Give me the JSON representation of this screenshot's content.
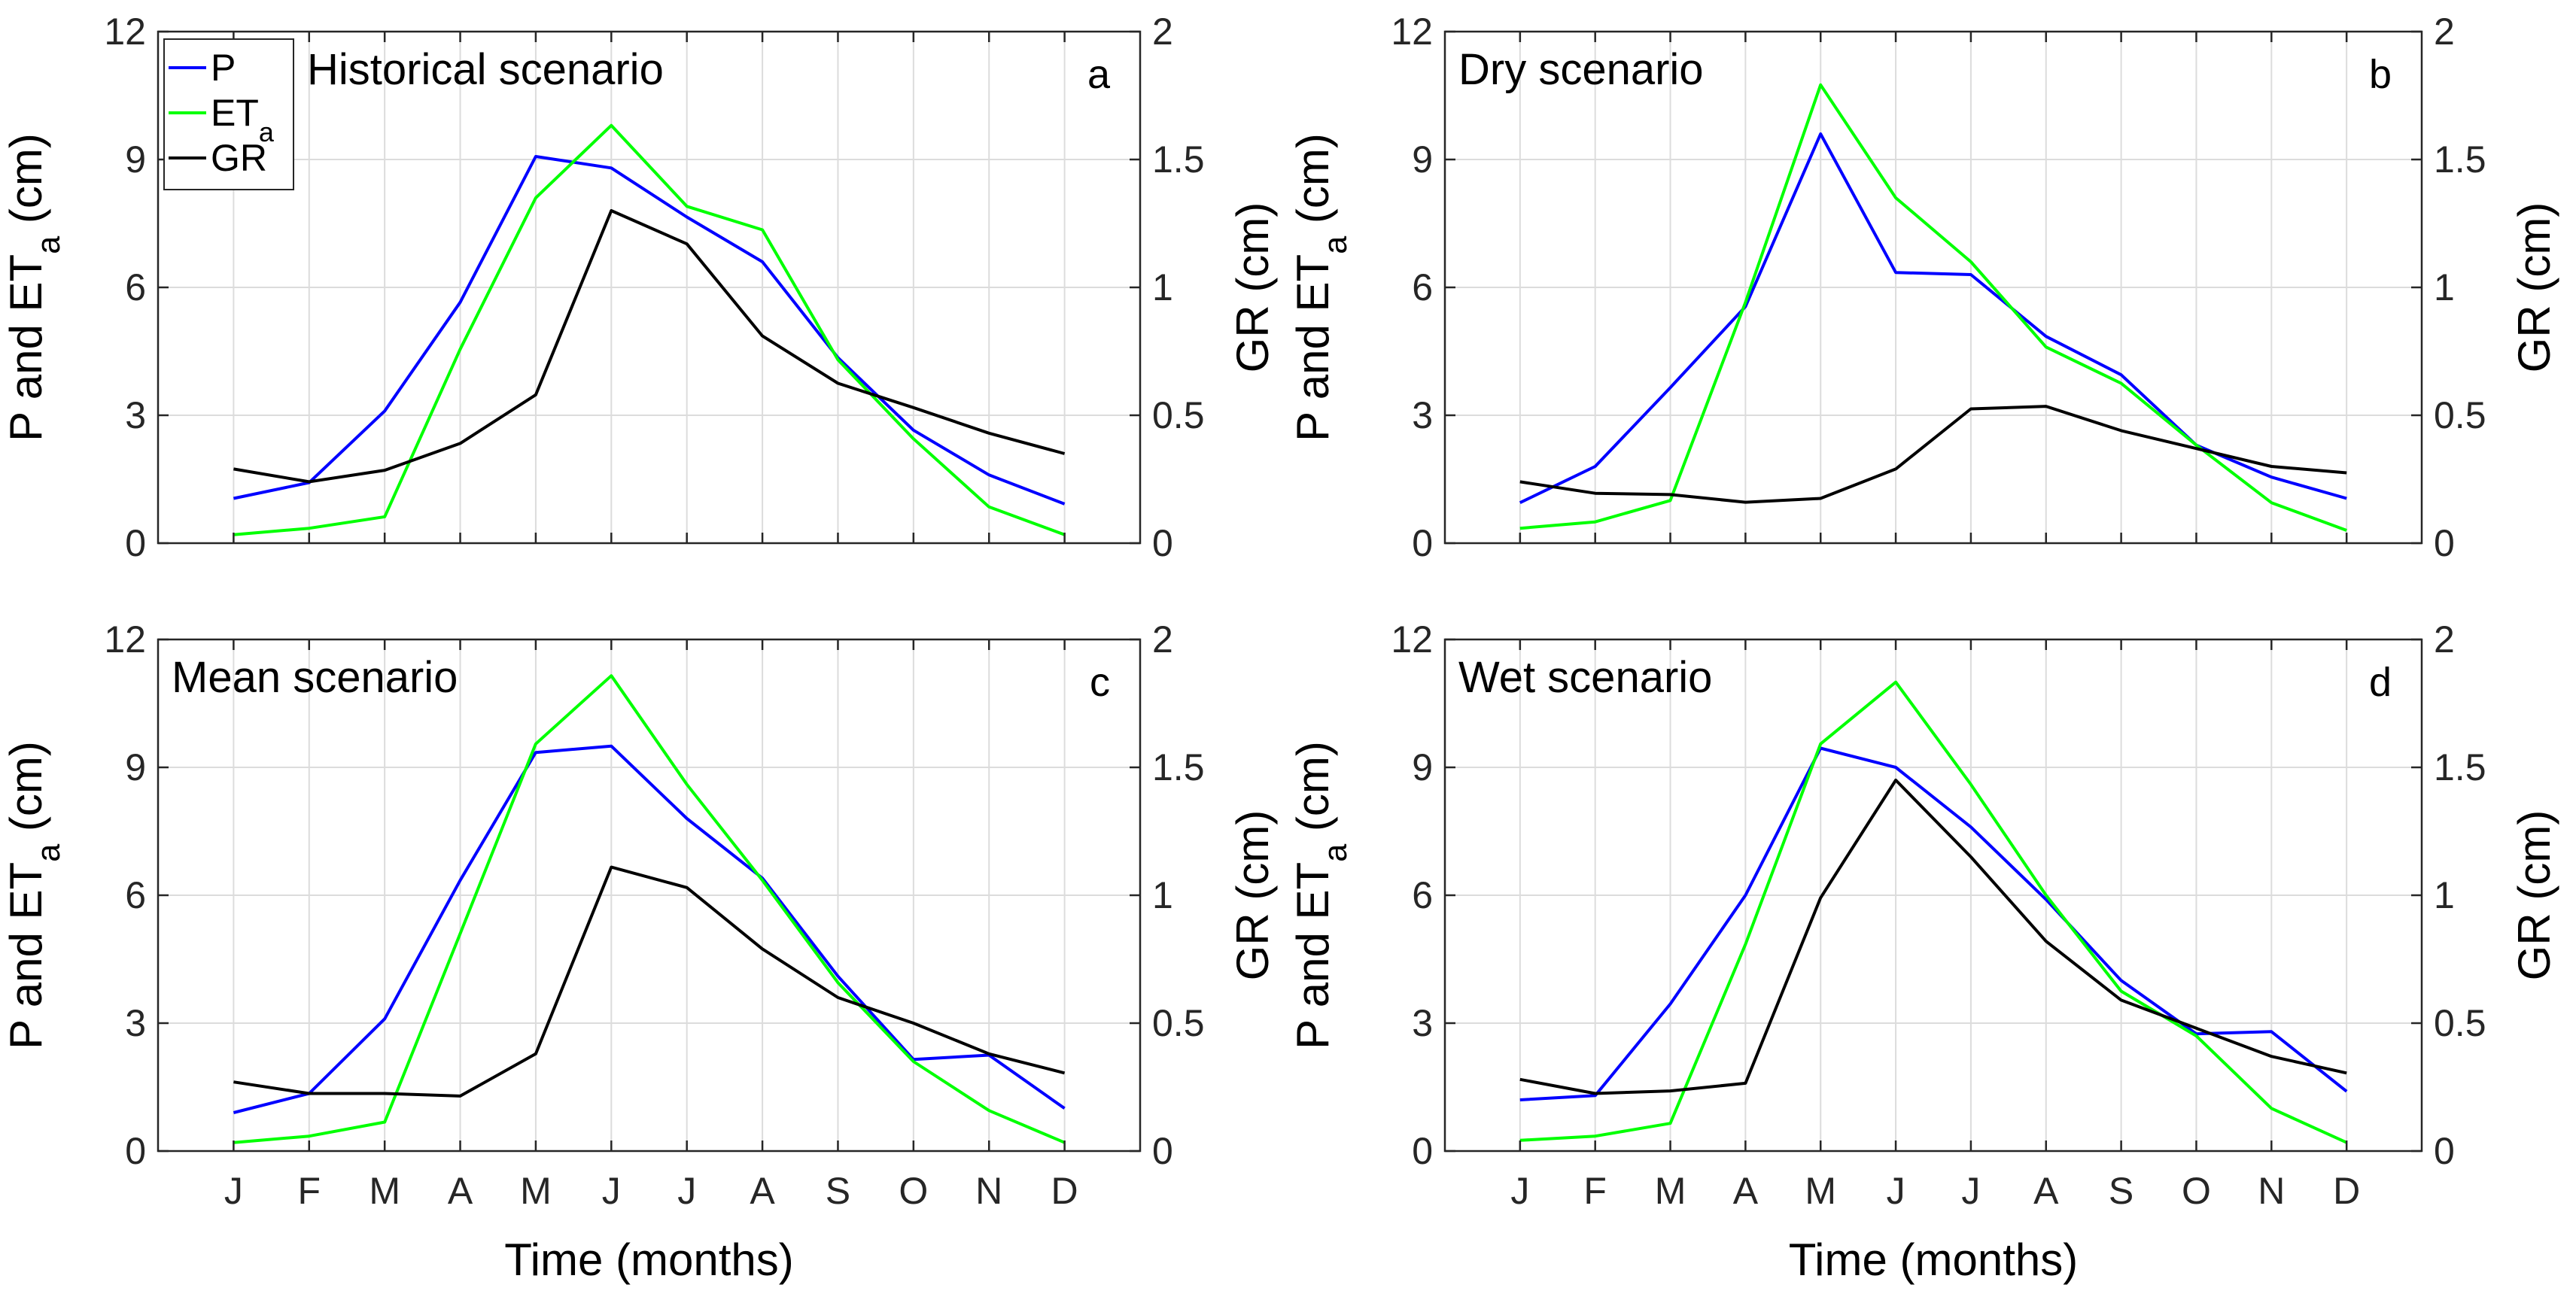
{
  "colors": {
    "P": "#0000ff",
    "ETa": "#00ff00",
    "GR": "#000000"
  },
  "chart_data": [
    {
      "type": "line",
      "title": "Historical scenario",
      "panel_label": "a",
      "categories": [
        "J",
        "F",
        "M",
        "A",
        "M",
        "J",
        "J",
        "A",
        "S",
        "O",
        "N",
        "D"
      ],
      "ylim_left": [
        0,
        12
      ],
      "yticks_left": [
        "0",
        "3",
        "6",
        "9",
        "12"
      ],
      "ylim_right": [
        0,
        2
      ],
      "yticks_right": [
        "0",
        "0.5",
        "1",
        "1.5",
        "2"
      ],
      "ylabel_left_main": "P and ET",
      "ylabel_left_sub": "a",
      "ylabel_left_tail": " (cm)",
      "ylabel_right": "GR (cm)",
      "xlabel": "",
      "legend": true,
      "series": [
        {
          "name": "P",
          "axis": "left",
          "values": [
            1.05,
            1.42,
            3.1,
            5.65,
            9.07,
            8.8,
            7.65,
            6.6,
            4.35,
            2.65,
            1.6,
            0.92
          ]
        },
        {
          "name": "ET",
          "name_sub": "a",
          "axis": "left",
          "values": [
            0.2,
            0.35,
            0.62,
            4.55,
            8.1,
            9.8,
            7.9,
            7.35,
            4.3,
            2.45,
            0.85,
            0.2
          ]
        },
        {
          "name": "GR",
          "axis": "right",
          "values": [
            0.29,
            0.24,
            0.285,
            0.39,
            0.58,
            1.3,
            1.17,
            0.81,
            0.625,
            0.53,
            0.43,
            0.35
          ]
        }
      ]
    },
    {
      "type": "line",
      "title": "Dry scenario",
      "panel_label": "b",
      "categories": [
        "J",
        "F",
        "M",
        "A",
        "M",
        "J",
        "J",
        "A",
        "S",
        "O",
        "N",
        "D"
      ],
      "ylim_left": [
        0,
        12
      ],
      "yticks_left": [
        "0",
        "3",
        "6",
        "9",
        "12"
      ],
      "ylim_right": [
        0,
        2
      ],
      "yticks_right": [
        "0",
        "0.5",
        "1",
        "1.5",
        "2"
      ],
      "ylabel_left_main": "P and ET",
      "ylabel_left_sub": "a",
      "ylabel_left_tail": " (cm)",
      "ylabel_right": "GR (cm)",
      "xlabel": "",
      "legend": false,
      "series": [
        {
          "name": "P",
          "axis": "left",
          "values": [
            0.95,
            1.8,
            3.65,
            5.55,
            9.6,
            6.35,
            6.3,
            4.85,
            3.95,
            2.3,
            1.55,
            1.05
          ]
        },
        {
          "name": "ET",
          "name_sub": "a",
          "axis": "left",
          "values": [
            0.35,
            0.5,
            1.0,
            5.65,
            10.75,
            8.1,
            6.6,
            4.6,
            3.75,
            2.3,
            0.95,
            0.3
          ]
        },
        {
          "name": "GR",
          "axis": "right",
          "values": [
            0.24,
            0.195,
            0.19,
            0.16,
            0.175,
            0.29,
            0.525,
            0.535,
            0.44,
            0.37,
            0.3,
            0.275
          ]
        }
      ]
    },
    {
      "type": "line",
      "title": "Mean scenario",
      "panel_label": "c",
      "categories": [
        "J",
        "F",
        "M",
        "A",
        "M",
        "J",
        "J",
        "A",
        "S",
        "O",
        "N",
        "D"
      ],
      "ylim_left": [
        0,
        12
      ],
      "yticks_left": [
        "0",
        "3",
        "6",
        "9",
        "12"
      ],
      "ylim_right": [
        0,
        2
      ],
      "yticks_right": [
        "0",
        "0.5",
        "1",
        "1.5",
        "2"
      ],
      "ylabel_left_main": "P and ET",
      "ylabel_left_sub": "a",
      "ylabel_left_tail": " (cm)",
      "ylabel_right": "GR (cm)",
      "xlabel": "Time (months)",
      "legend": false,
      "series": [
        {
          "name": "P",
          "axis": "left",
          "values": [
            0.9,
            1.35,
            3.1,
            6.35,
            9.35,
            9.5,
            7.8,
            6.4,
            4.1,
            2.15,
            2.25,
            1.0
          ]
        },
        {
          "name": "ET",
          "name_sub": "a",
          "axis": "left",
          "values": [
            0.2,
            0.35,
            0.68,
            5.1,
            9.55,
            11.15,
            8.6,
            6.35,
            3.95,
            2.1,
            0.95,
            0.2
          ]
        },
        {
          "name": "GR",
          "axis": "right",
          "values": [
            0.27,
            0.225,
            0.225,
            0.215,
            0.38,
            1.11,
            1.03,
            0.79,
            0.6,
            0.5,
            0.38,
            0.305
          ]
        }
      ]
    },
    {
      "type": "line",
      "title": "Wet scenario",
      "panel_label": "d",
      "categories": [
        "J",
        "F",
        "M",
        "A",
        "M",
        "J",
        "J",
        "A",
        "S",
        "O",
        "N",
        "D"
      ],
      "ylim_left": [
        0,
        12
      ],
      "yticks_left": [
        "0",
        "3",
        "6",
        "9",
        "12"
      ],
      "ylim_right": [
        0,
        2
      ],
      "yticks_right": [
        "0",
        "0.5",
        "1",
        "1.5",
        "2"
      ],
      "ylabel_left_main": "P and ET",
      "ylabel_left_sub": "a",
      "ylabel_left_tail": " (cm)",
      "ylabel_right": "GR (cm)",
      "xlabel": "Time (months)",
      "legend": false,
      "series": [
        {
          "name": "P",
          "axis": "left",
          "values": [
            1.2,
            1.3,
            3.45,
            6.0,
            9.45,
            9.0,
            7.6,
            5.9,
            4.0,
            2.75,
            2.8,
            1.4
          ]
        },
        {
          "name": "ET",
          "name_sub": "a",
          "axis": "left",
          "values": [
            0.25,
            0.35,
            0.65,
            4.85,
            9.55,
            11.0,
            8.6,
            6.0,
            3.75,
            2.7,
            1.0,
            0.2
          ]
        },
        {
          "name": "GR",
          "axis": "right",
          "values": [
            0.28,
            0.225,
            0.235,
            0.265,
            0.99,
            1.45,
            1.15,
            0.82,
            0.59,
            0.48,
            0.37,
            0.305
          ]
        }
      ]
    }
  ]
}
